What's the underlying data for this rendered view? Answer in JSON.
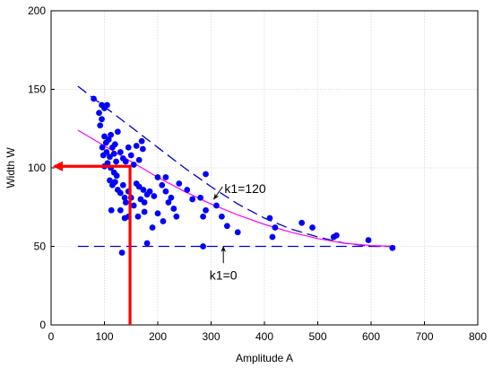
{
  "chart_data": {
    "type": "scatter",
    "title": "",
    "xlabel": "Amplitude A",
    "ylabel": "Width W",
    "xlim": [
      0,
      800
    ],
    "ylim": [
      0,
      200
    ],
    "xticks": [
      "0",
      "100",
      "200",
      "300",
      "400",
      "500",
      "600",
      "700",
      "800"
    ],
    "yticks": [
      "0",
      "50",
      "100",
      "150",
      "200"
    ],
    "grid": true,
    "colors": {
      "points": "#0000ff",
      "upper_dashed": "#0000cc",
      "fit_curve": "#ff00ff",
      "lower_dashed": "#0000cc",
      "arrow": "#ff0000"
    },
    "series": [
      {
        "kind": "points",
        "points": [
          [
            80,
            144
          ],
          [
            90,
            135
          ],
          [
            95,
            140
          ],
          [
            100,
            138
          ],
          [
            105,
            140
          ],
          [
            92,
            127
          ],
          [
            95,
            131
          ],
          [
            100,
            120
          ],
          [
            103,
            116
          ],
          [
            108,
            118
          ],
          [
            112,
            121
          ],
          [
            96,
            113
          ],
          [
            115,
            113
          ],
          [
            120,
            115
          ],
          [
            125,
            123
          ],
          [
            98,
            108
          ],
          [
            104,
            110
          ],
          [
            110,
            107
          ],
          [
            118,
            109
          ],
          [
            122,
            104
          ],
          [
            100,
            101
          ],
          [
            106,
            103
          ],
          [
            112,
            100
          ],
          [
            118,
            97
          ],
          [
            123,
            95
          ],
          [
            130,
            110
          ],
          [
            135,
            106
          ],
          [
            140,
            104
          ],
          [
            145,
            113
          ],
          [
            150,
            108
          ],
          [
            155,
            102
          ],
          [
            160,
            114
          ],
          [
            165,
            105
          ],
          [
            170,
            117
          ],
          [
            172,
            112
          ],
          [
            110,
            92
          ],
          [
            115,
            89
          ],
          [
            120,
            91
          ],
          [
            125,
            86
          ],
          [
            130,
            84
          ],
          [
            135,
            89
          ],
          [
            138,
            81
          ],
          [
            140,
            78
          ],
          [
            145,
            85
          ],
          [
            150,
            81
          ],
          [
            155,
            76
          ],
          [
            160,
            90
          ],
          [
            165,
            88
          ],
          [
            168,
            80
          ],
          [
            173,
            86
          ],
          [
            175,
            78
          ],
          [
            180,
            83
          ],
          [
            185,
            85
          ],
          [
            193,
            82
          ],
          [
            200,
            94
          ],
          [
            208,
            89
          ],
          [
            215,
            85
          ],
          [
            220,
            78
          ],
          [
            225,
            81
          ],
          [
            230,
            74
          ],
          [
            235,
            69
          ],
          [
            175,
            72
          ],
          [
            190,
            62
          ],
          [
            200,
            71
          ],
          [
            210,
            66
          ],
          [
            113,
            73
          ],
          [
            130,
            73
          ],
          [
            138,
            68
          ],
          [
            145,
            69
          ],
          [
            163,
            69
          ],
          [
            180,
            52
          ],
          [
            133,
            46
          ],
          [
            215,
            94
          ],
          [
            240,
            90
          ],
          [
            255,
            86
          ],
          [
            265,
            80
          ],
          [
            280,
            81
          ],
          [
            290,
            96
          ],
          [
            290,
            73
          ],
          [
            285,
            69
          ],
          [
            310,
            76
          ],
          [
            320,
            69
          ],
          [
            330,
            63
          ],
          [
            350,
            59
          ],
          [
            410,
            68
          ],
          [
            415,
            56
          ],
          [
            420,
            62
          ],
          [
            470,
            65
          ],
          [
            490,
            62
          ],
          [
            530,
            56
          ],
          [
            535,
            57
          ],
          [
            595,
            54
          ],
          [
            640,
            49
          ],
          [
            285,
            50
          ]
        ]
      },
      {
        "kind": "dashed-curve",
        "points": [
          [
            50,
            152
          ],
          [
            100,
            139
          ],
          [
            150,
            126
          ],
          [
            200,
            113
          ],
          [
            250,
            100
          ],
          [
            300,
            88
          ],
          [
            350,
            77
          ],
          [
            400,
            68
          ],
          [
            450,
            61
          ],
          [
            500,
            56
          ],
          [
            550,
            52
          ],
          [
            600,
            50
          ],
          [
            645,
            50
          ]
        ]
      },
      {
        "kind": "fit-curve",
        "points": [
          [
            50,
            124
          ],
          [
            100,
            114
          ],
          [
            150,
            104
          ],
          [
            200,
            94
          ],
          [
            250,
            85
          ],
          [
            300,
            77
          ],
          [
            350,
            70
          ],
          [
            400,
            64
          ],
          [
            450,
            59
          ],
          [
            500,
            55
          ],
          [
            550,
            52
          ],
          [
            600,
            50.5
          ],
          [
            645,
            50
          ]
        ]
      },
      {
        "kind": "horizontal-dashed",
        "points": [
          [
            50,
            50
          ],
          [
            645,
            50
          ]
        ]
      },
      {
        "kind": "arrow-path",
        "points": [
          [
            148,
            0
          ],
          [
            148,
            101
          ],
          [
            0,
            101
          ]
        ]
      }
    ],
    "annotations": [
      {
        "text": "k1=120",
        "x": 325,
        "y": 84,
        "arrow_to": [
          305,
          80
        ]
      },
      {
        "text": "k1=0",
        "x": 323,
        "y": 29,
        "arrow_to": [
          323,
          50
        ]
      }
    ]
  }
}
